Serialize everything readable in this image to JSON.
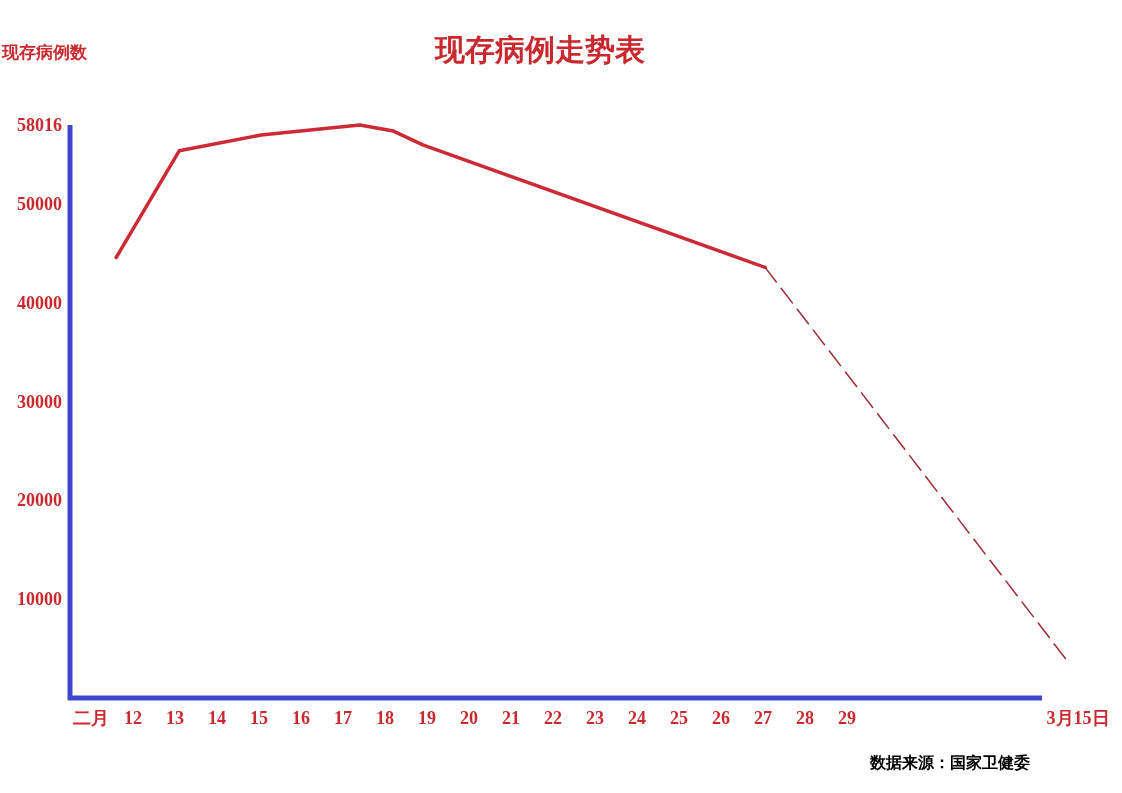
{
  "chart_data": {
    "type": "line",
    "title": "现存病例走势表",
    "ylabel": "现存病例数",
    "annotations": [
      "数据来源：国家卫健委"
    ],
    "xlim": [
      10.5,
      34.5
    ],
    "ylim": [
      0,
      58016
    ],
    "xticks": [
      {
        "value": 11,
        "label": "二月"
      },
      12,
      13,
      14,
      15,
      16,
      17,
      18,
      19,
      20,
      21,
      22,
      23,
      24,
      25,
      26,
      27,
      28,
      29,
      {
        "value": 34.5,
        "label": "3月15日"
      }
    ],
    "yticks": [
      10000,
      20000,
      30000,
      40000,
      50000,
      58016
    ],
    "grid": false,
    "series": [
      {
        "color": "#cc2a36",
        "line_style": "solid",
        "x": [
          11.6,
          13.1,
          15.05,
          17.4,
          18.2,
          18.9,
          27.05
        ],
        "values": [
          44600,
          55400,
          57000,
          58016,
          57400,
          56000,
          43600
        ]
      },
      {
        "color": "#a02a34",
        "line_style": "dashed",
        "x": [
          27.05,
          34.2
        ],
        "values": [
          43600,
          4000
        ]
      }
    ]
  }
}
